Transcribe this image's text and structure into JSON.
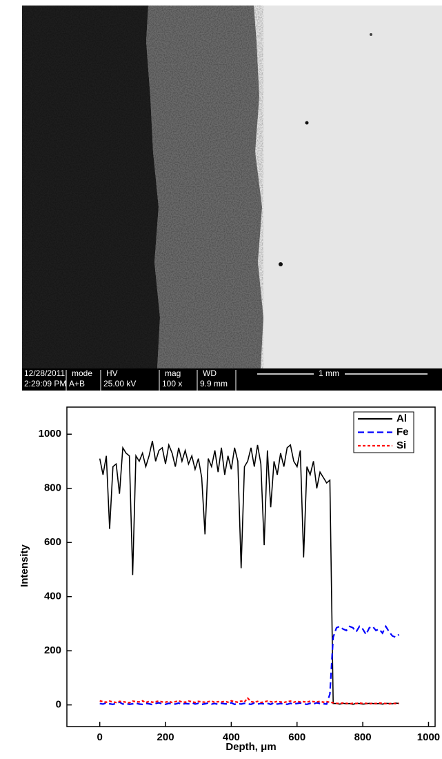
{
  "micrograph": {
    "date": "12/28/2011",
    "time": "2:29:09 PM",
    "fields": [
      {
        "label": "mode",
        "value": "A+B"
      },
      {
        "label": "HV",
        "value": "25.00 kV"
      },
      {
        "label": "mag",
        "value": "100 x"
      },
      {
        "label": "WD",
        "value": "9.9 mm"
      }
    ],
    "scale_bar": "1 mm"
  },
  "chart_data": {
    "type": "line",
    "x_label": "Depth, μm",
    "y_label": "Intensity",
    "x": [
      0,
      10,
      20,
      30,
      40,
      50,
      60,
      70,
      80,
      90,
      100,
      110,
      120,
      130,
      140,
      150,
      160,
      170,
      180,
      190,
      200,
      210,
      220,
      230,
      240,
      250,
      260,
      270,
      280,
      290,
      300,
      310,
      320,
      330,
      340,
      350,
      360,
      370,
      380,
      390,
      400,
      410,
      420,
      430,
      440,
      450,
      460,
      470,
      480,
      490,
      500,
      510,
      520,
      530,
      540,
      550,
      560,
      570,
      580,
      590,
      600,
      610,
      620,
      630,
      640,
      650,
      660,
      670,
      680,
      690,
      700,
      710,
      720,
      730,
      740,
      750,
      760,
      770,
      780,
      790,
      800,
      810,
      820,
      830,
      840,
      850,
      860,
      870,
      880,
      890,
      900,
      910
    ],
    "series": [
      {
        "name": "Al",
        "color": "#000000",
        "linestyle": "solid",
        "values": [
          910,
          850,
          920,
          650,
          880,
          890,
          780,
          950,
          930,
          920,
          480,
          920,
          900,
          930,
          880,
          920,
          975,
          900,
          940,
          950,
          890,
          960,
          930,
          880,
          950,
          900,
          940,
          890,
          920,
          870,
          910,
          840,
          630,
          910,
          880,
          940,
          860,
          950,
          850,
          920,
          870,
          950,
          900,
          505,
          880,
          900,
          950,
          880,
          960,
          890,
          590,
          940,
          730,
          900,
          850,
          930,
          880,
          950,
          960,
          900,
          880,
          940,
          545,
          880,
          850,
          900,
          800,
          860,
          840,
          820,
          830,
          5,
          5,
          3,
          6,
          4,
          5,
          2,
          6,
          5,
          3,
          4,
          6,
          5,
          4,
          5,
          3,
          6,
          5,
          4,
          7,
          5
        ]
      },
      {
        "name": "Fe",
        "color": "#0000ff",
        "linestyle": "dashed",
        "values": [
          5,
          3,
          8,
          4,
          2,
          6,
          10,
          3,
          5,
          2,
          4,
          7,
          3,
          2,
          6,
          4,
          1,
          5,
          8,
          3,
          2,
          6,
          4,
          3,
          7,
          2,
          5,
          4,
          8,
          3,
          6,
          2,
          4,
          7,
          3,
          5,
          2,
          6,
          4,
          3,
          8,
          2,
          5,
          3,
          6,
          4,
          2,
          7,
          3,
          5,
          4,
          6,
          2,
          8,
          3,
          5,
          4,
          2,
          6,
          3,
          5,
          7,
          4,
          2,
          6,
          3,
          8,
          5,
          4,
          3,
          40,
          250,
          285,
          290,
          280,
          275,
          290,
          285,
          270,
          290,
          280,
          260,
          285,
          290,
          275,
          280,
          265,
          290,
          270,
          255,
          250,
          260
        ]
      },
      {
        "name": "Si",
        "color": "#ff0000",
        "linestyle": "dotted",
        "values": [
          15,
          12,
          10,
          14,
          11,
          9,
          13,
          12,
          10,
          8,
          14,
          12,
          11,
          15,
          9,
          13,
          10,
          12,
          14,
          11,
          10,
          13,
          9,
          12,
          15,
          11,
          10,
          14,
          12,
          9,
          13,
          11,
          10,
          12,
          14,
          9,
          12,
          11,
          13,
          10,
          15,
          12,
          10,
          14,
          11,
          25,
          12,
          10,
          13,
          9,
          11,
          14,
          12,
          10,
          13,
          11,
          9,
          12,
          14,
          10,
          13,
          11,
          12,
          10,
          14,
          12,
          11,
          13,
          10,
          12,
          10,
          8,
          6,
          5,
          7,
          6,
          4,
          6,
          5,
          7,
          5,
          6,
          4,
          6,
          5,
          7,
          6,
          5,
          4,
          6,
          5,
          6
        ]
      }
    ],
    "xlim": [
      -100,
      1020
    ],
    "ylim": [
      -80,
      1100
    ],
    "xticks": [
      0,
      200,
      400,
      600,
      800,
      1000
    ],
    "yticks": [
      0,
      200,
      400,
      600,
      800,
      1000
    ],
    "legend": "upper right"
  }
}
